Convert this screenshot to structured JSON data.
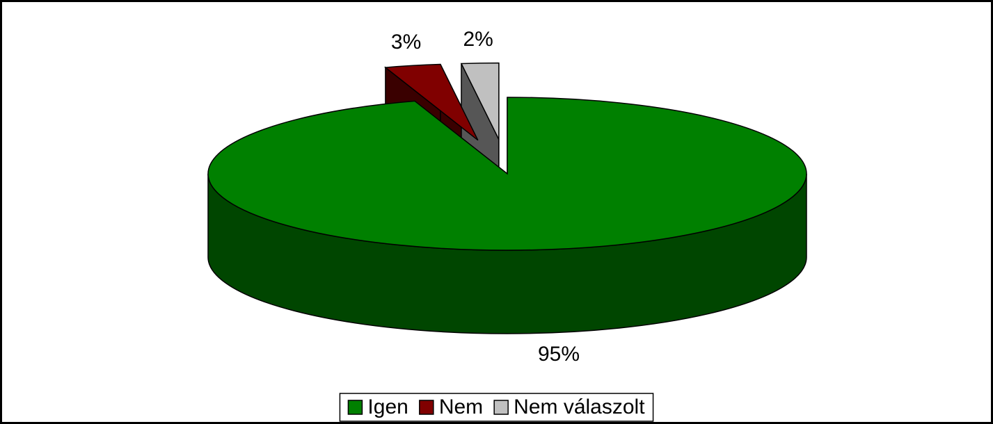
{
  "chart_data": {
    "type": "pie3d",
    "categories": [
      "Igen",
      "Nem",
      "Nem válaszolt"
    ],
    "values": [
      95,
      3,
      2
    ],
    "value_labels": [
      "95%",
      "3%",
      "2%"
    ],
    "colors": [
      "#008000",
      "#800000",
      "#c0c0c0"
    ],
    "legend": "bottom"
  }
}
